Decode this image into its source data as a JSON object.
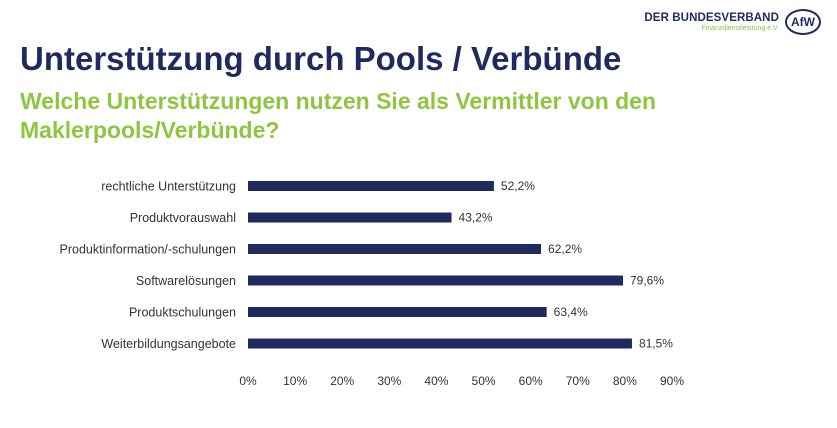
{
  "logo": {
    "name": "DER BUNDESVERBAND",
    "tagline": "Finanzdienstleistung e.V.",
    "mark": "AfW"
  },
  "header": {
    "title": "Unterstützung durch Pools / Verbünde",
    "subtitle": "Welche Unterstützungen nutzen Sie als Vermittler von den Maklerpools/Verbünde?"
  },
  "colors": {
    "bar": "#1f2b5e",
    "title": "#1f2b5e",
    "subtitle": "#8dc63f"
  },
  "chart_data": {
    "type": "bar",
    "orientation": "horizontal",
    "categories": [
      "rechtliche Unterstützung",
      "Produktvorauswahl",
      "Produktinformation/-schulungen",
      "Softwarelösungen",
      "Produktschulungen",
      "Weiterbildungsangebote"
    ],
    "values": [
      52.2,
      43.2,
      62.2,
      79.6,
      63.4,
      81.5
    ],
    "value_labels": [
      "52,2%",
      "43,2%",
      "62,2%",
      "79,6%",
      "63,4%",
      "81,5%"
    ],
    "xlim": [
      0,
      90
    ],
    "xticks": [
      0,
      10,
      20,
      30,
      40,
      50,
      60,
      70,
      80,
      90
    ],
    "xtick_labels": [
      "0%",
      "10%",
      "20%",
      "30%",
      "40%",
      "50%",
      "60%",
      "70%",
      "80%",
      "90%"
    ],
    "grid": false,
    "legend": "none",
    "title": "",
    "xlabel": "",
    "ylabel": ""
  }
}
